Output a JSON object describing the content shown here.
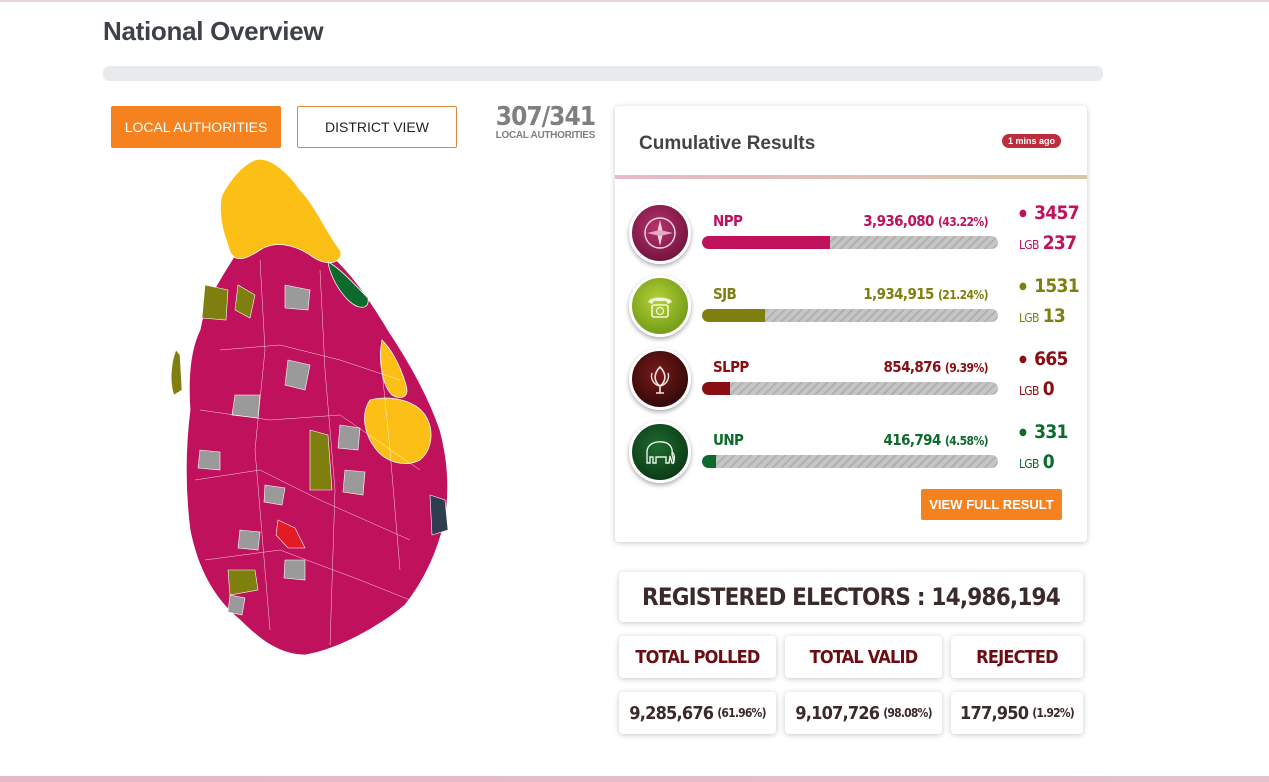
{
  "page": {
    "title": "National Overview"
  },
  "view_toggle": {
    "local_label": "LOCAL AUTHORITIES",
    "district_label": "DISTRICT VIEW"
  },
  "counter": {
    "done": "307",
    "total": "341",
    "label": "LOCAL AUTHORITIES"
  },
  "colors": {
    "NPP": "#c0125c",
    "SJB": "#7f7f0f",
    "SLPP": "#8a0d12",
    "UNP": "#0d6a2c",
    "ITAK": "#fbbf15",
    "accent": "#f5821f"
  },
  "results": {
    "title": "Cumulative Results",
    "updated": "1 mins ago",
    "parties": [
      {
        "name": "NPP",
        "votes": "3,936,080",
        "pct": "(43.22%)",
        "share": 43.22,
        "seats": "3457",
        "lgb_label": "LGB",
        "lgb": "237",
        "color": "#c0125c",
        "logo_icon": "compass-icon"
      },
      {
        "name": "SJB",
        "votes": "1,934,915",
        "pct": "(21.24%)",
        "share": 21.24,
        "seats": "1531",
        "lgb_label": "LGB",
        "lgb": "13",
        "color": "#7f7f0f",
        "logo_icon": "telephone-icon"
      },
      {
        "name": "SLPP",
        "votes": "854,876",
        "pct": "(9.39%)",
        "share": 9.39,
        "seats": "665",
        "lgb_label": "LGB",
        "lgb": "0",
        "color": "#8a0d12",
        "logo_icon": "flower-bud-icon"
      },
      {
        "name": "UNP",
        "votes": "416,794",
        "pct": "(4.58%)",
        "share": 4.58,
        "seats": "331",
        "lgb_label": "LGB",
        "lgb": "0",
        "color": "#0d6a2c",
        "logo_icon": "elephant-icon"
      }
    ],
    "full_button": "VIEW FULL RESULT"
  },
  "stats": {
    "registered": "REGISTERED ELECTORS : 14,986,194",
    "headers": [
      "TOTAL POLLED",
      "TOTAL VALID",
      "REJECTED"
    ],
    "values": [
      {
        "value": "9,285,676",
        "pct": "(61.96%)"
      },
      {
        "value": "9,107,726",
        "pct": "(98.08%)"
      },
      {
        "value": "177,950",
        "pct": "(1.92%)"
      }
    ]
  }
}
